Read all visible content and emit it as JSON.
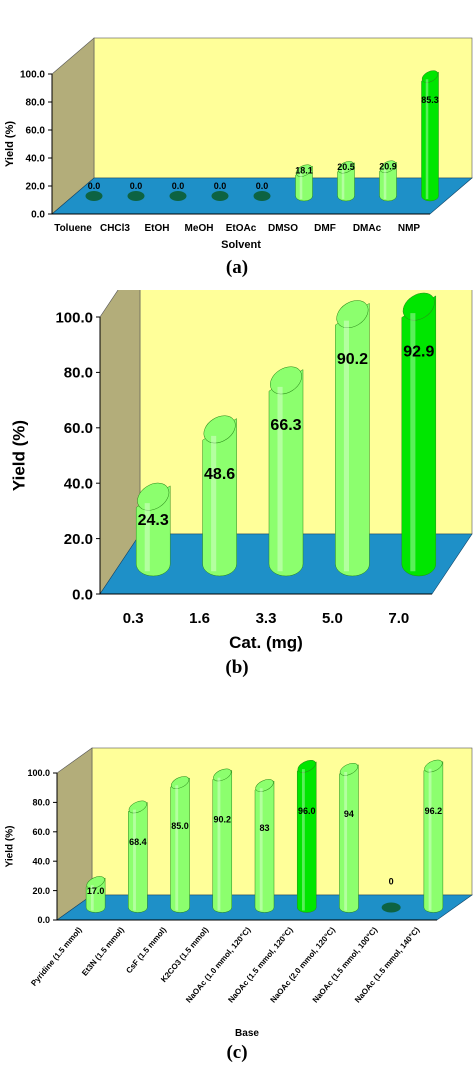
{
  "colors": {
    "wall_back": "#ffff99",
    "wall_side": "#b3ad7a",
    "floor": "#1e90c8",
    "bar": "#8cff6e",
    "bar_highlight": "#00e600"
  },
  "chart_data": [
    {
      "id": "a",
      "type": "bar",
      "caption": "(a)",
      "xlabel": "Solvent",
      "ylabel": "Yield (%)",
      "ylim": [
        0,
        100
      ],
      "yticks": [
        "0.0",
        "20.0",
        "40.0",
        "60.0",
        "80.0",
        "100.0"
      ],
      "categories": [
        "Toluene",
        "CHCl3",
        "EtOH",
        "MeOH",
        "EtOAc",
        "DMSO",
        "DMF",
        "DMAc",
        "NMP"
      ],
      "values": [
        0.0,
        0.0,
        0.0,
        0.0,
        0.0,
        18.1,
        20.5,
        20.9,
        85.3
      ],
      "labels": [
        "0.0",
        "0.0",
        "0.0",
        "0.0",
        "0.0",
        "18.1",
        "20.5",
        "20.9",
        "85.3"
      ],
      "highlight_index": 8,
      "label_position": "top",
      "categories_rotated": false
    },
    {
      "id": "b",
      "type": "bar",
      "caption": "(b)",
      "xlabel": "Cat. (mg)",
      "ylabel": "Yield (%)",
      "ylim": [
        0,
        100
      ],
      "yticks": [
        "0.0",
        "20.0",
        "40.0",
        "60.0",
        "80.0",
        "100.0"
      ],
      "categories": [
        "0.3",
        "1.6",
        "3.3",
        "5.0",
        "7.0"
      ],
      "values": [
        24.3,
        48.6,
        66.3,
        90.2,
        92.9
      ],
      "labels": [
        "24.3",
        "48.6",
        "66.3",
        "90.2",
        "92.9"
      ],
      "highlight_index": 4,
      "label_position": "inside",
      "categories_rotated": false
    },
    {
      "id": "c",
      "type": "bar",
      "caption": "(c)",
      "xlabel": "Base",
      "ylabel": "Yield (%)",
      "ylim": [
        0,
        100
      ],
      "yticks": [
        "0.0",
        "20.0",
        "40.0",
        "60.0",
        "80.0",
        "100.0"
      ],
      "categories": [
        "Pyridine (1.5 mmol)",
        "Et3N (1.5 mmol)",
        "CsF (1.5 mmol)",
        "K2CO3 (1.5 mmol)",
        "NaOAc (1.0 mmol, 120°C)",
        "NaOAc (1.5 mmol, 120°C)",
        "NaOAc (2.0 mmol, 120°C)",
        "NaOAc (1.5 mmol, 100°C)",
        "NaOAc (1.5 mmol, 140°C)"
      ],
      "values": [
        17.0,
        68.4,
        85.0,
        90.2,
        83,
        96.0,
        94,
        0,
        96.2
      ],
      "labels": [
        "17.0",
        "68.4",
        "85.0",
        "90.2",
        "83",
        "96.0",
        "94",
        "0",
        "96.2"
      ],
      "highlight_index": 5,
      "label_position": "inside",
      "categories_rotated": true
    }
  ]
}
